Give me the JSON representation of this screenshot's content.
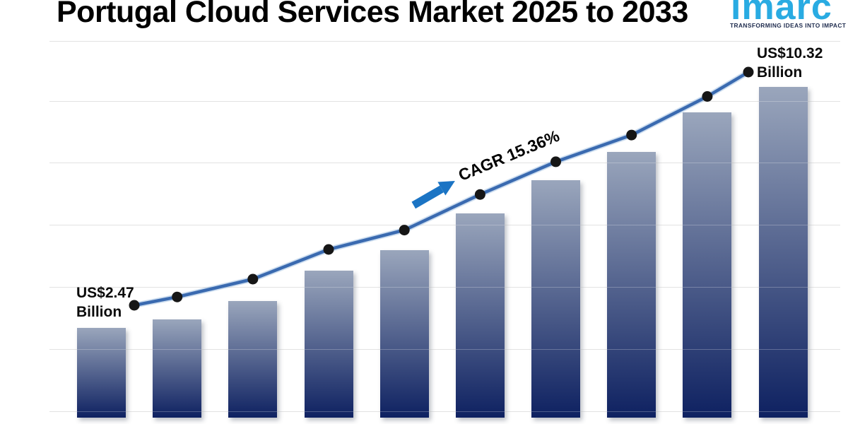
{
  "header": {
    "title": "Portugal Cloud Services Market 2025 to 2033",
    "logo": {
      "wordmark": "imarc",
      "tagline": "TRANSFORMING IDEAS INTO IMPACT"
    }
  },
  "chart_data": {
    "type": "bar",
    "subtype": "bar-with-trend-line",
    "title": "Portugal Cloud Services Market 2025 to 2033",
    "unit": "US$ Billion",
    "n_bars": 10,
    "values": [
      2.47,
      2.75,
      3.35,
      4.35,
      5.0,
      6.2,
      7.3,
      8.2,
      9.5,
      10.32
    ],
    "values_estimated": true,
    "labeled_values": {
      "first": 2.47,
      "last": 10.32
    },
    "start_label": {
      "line1": "US$2.47",
      "line2": "Billion"
    },
    "end_label": {
      "line1": "US$10.32",
      "line2": "Billion"
    },
    "cagr_label": "CAGR 15.36%",
    "layout_hints": {
      "legend": "none",
      "axis_tick_labels": "none",
      "gridlines": "horizontal only",
      "horizontal_gridline_count": 7
    },
    "colors": {
      "bar_top": "#9aa6bc",
      "bar_bottom": "#0e2161",
      "line": "#3a6ab0",
      "line_halo": "#8fb3dc",
      "marker": "#161616",
      "arrow": "#1b74c4",
      "gridline": "#d9d9d9",
      "title_text": "#000000",
      "logo_blue": "#29abe2",
      "logo_navy": "#1f2c4e"
    }
  }
}
